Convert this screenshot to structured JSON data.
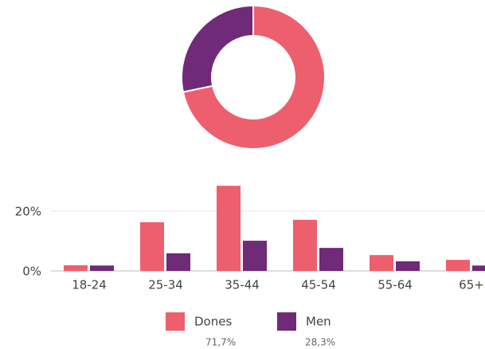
{
  "chart_data": [
    {
      "type": "donut",
      "values": [
        71.7,
        28.3
      ],
      "value_labels": [
        "71,7%",
        "28,3%"
      ],
      "colors": [
        "#ee5f6d",
        "#6f2a78"
      ]
    },
    {
      "type": "bar",
      "categories": [
        "18-24",
        "25-34",
        "35-44",
        "45-54",
        "55-64",
        "65+"
      ],
      "series": [
        {
          "name": "Dones",
          "color": "#ee5f6d",
          "values": [
            1.9,
            16.3,
            28.5,
            17.1,
            5.3,
            3.7
          ]
        },
        {
          "name": "Men",
          "color": "#6f2a78",
          "values": [
            1.8,
            5.9,
            10.1,
            7.7,
            3.2,
            1.8
          ]
        }
      ],
      "ylim": [
        0,
        30
      ],
      "yticks": [
        {
          "value": 0,
          "label": "0%"
        },
        {
          "value": 20,
          "label": "20%"
        }
      ],
      "grid": true
    }
  ]
}
